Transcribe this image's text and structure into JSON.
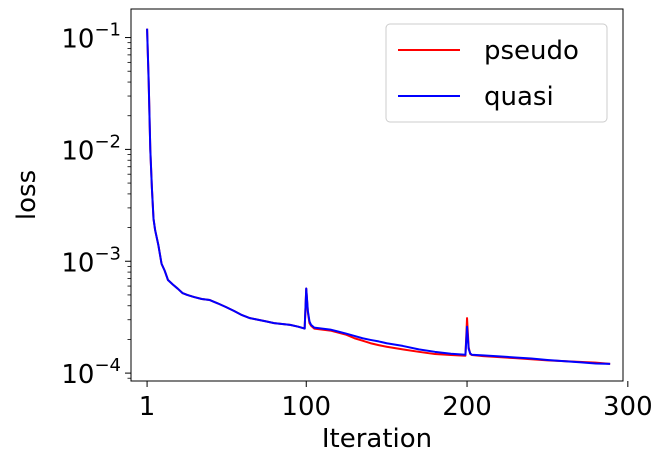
{
  "chart_data": {
    "type": "line",
    "title": "",
    "xlabel": "Iteration",
    "ylabel": "loss",
    "yscale": "log",
    "xlim": [
      -9,
      297
    ],
    "ylim": [
      8.5e-05,
      0.18
    ],
    "x_ticks": [
      1,
      100,
      200,
      300
    ],
    "y_ticks": [
      {
        "value": 0.0001,
        "base": "10",
        "exp": "−4"
      },
      {
        "value": 0.001,
        "base": "10",
        "exp": "−3"
      },
      {
        "value": 0.01,
        "base": "10",
        "exp": "−2"
      },
      {
        "value": 0.1,
        "base": "10",
        "exp": "−1"
      }
    ],
    "grid": false,
    "legend_position": "top-right",
    "series": [
      {
        "name": "pseudo",
        "color": "#ff0000",
        "points": [
          [
            1,
            0.12
          ],
          [
            2,
            0.04
          ],
          [
            3,
            0.01
          ],
          [
            4,
            0.0045
          ],
          [
            5,
            0.0024
          ],
          [
            6,
            0.0019
          ],
          [
            8,
            0.0014
          ],
          [
            10,
            0.00095
          ],
          [
            12,
            0.00082
          ],
          [
            14,
            0.00068
          ],
          [
            17,
            0.00062
          ],
          [
            20,
            0.00057
          ],
          [
            23,
            0.00052
          ],
          [
            26,
            0.0005
          ],
          [
            30,
            0.00048
          ],
          [
            35,
            0.00046
          ],
          [
            40,
            0.00045
          ],
          [
            45,
            0.00042
          ],
          [
            50,
            0.00039
          ],
          [
            55,
            0.00036
          ],
          [
            60,
            0.00033
          ],
          [
            65,
            0.00031
          ],
          [
            70,
            0.0003
          ],
          [
            75,
            0.00029
          ],
          [
            80,
            0.00028
          ],
          [
            85,
            0.000275
          ],
          [
            90,
            0.00027
          ],
          [
            95,
            0.00026
          ],
          [
            99,
            0.00025
          ],
          [
            100,
            0.00057
          ],
          [
            101,
            0.00035
          ],
          [
            102,
            0.00028
          ],
          [
            103,
            0.000265
          ],
          [
            105,
            0.00025
          ],
          [
            110,
            0.000245
          ],
          [
            115,
            0.00024
          ],
          [
            120,
            0.00023
          ],
          [
            125,
            0.00022
          ],
          [
            130,
            0.000205
          ],
          [
            135,
            0.000195
          ],
          [
            140,
            0.000185
          ],
          [
            145,
            0.000178
          ],
          [
            150,
            0.000172
          ],
          [
            160,
            0.000163
          ],
          [
            170,
            0.000155
          ],
          [
            180,
            0.000148
          ],
          [
            190,
            0.000145
          ],
          [
            199,
            0.000143
          ],
          [
            200,
            0.00031
          ],
          [
            201,
            0.00017
          ],
          [
            202,
            0.000148
          ],
          [
            203,
            0.000145
          ],
          [
            210,
            0.000142
          ],
          [
            220,
            0.000139
          ],
          [
            230,
            0.000136
          ],
          [
            240,
            0.000133
          ],
          [
            250,
            0.00013
          ],
          [
            260,
            0.000128
          ],
          [
            270,
            0.000126
          ],
          [
            280,
            0.000124
          ],
          [
            289,
            0.000121
          ]
        ]
      },
      {
        "name": "quasi",
        "color": "#0000ff",
        "points": [
          [
            1,
            0.12
          ],
          [
            2,
            0.04
          ],
          [
            3,
            0.01
          ],
          [
            4,
            0.0045
          ],
          [
            5,
            0.0024
          ],
          [
            6,
            0.0019
          ],
          [
            8,
            0.0014
          ],
          [
            10,
            0.00095
          ],
          [
            12,
            0.00082
          ],
          [
            14,
            0.00068
          ],
          [
            17,
            0.00062
          ],
          [
            20,
            0.00057
          ],
          [
            23,
            0.00052
          ],
          [
            26,
            0.0005
          ],
          [
            30,
            0.00048
          ],
          [
            35,
            0.00046
          ],
          [
            40,
            0.00045
          ],
          [
            45,
            0.00042
          ],
          [
            50,
            0.00039
          ],
          [
            55,
            0.00036
          ],
          [
            60,
            0.00033
          ],
          [
            65,
            0.00031
          ],
          [
            70,
            0.0003
          ],
          [
            75,
            0.00029
          ],
          [
            80,
            0.00028
          ],
          [
            85,
            0.000275
          ],
          [
            90,
            0.00027
          ],
          [
            95,
            0.00026
          ],
          [
            99,
            0.00025
          ],
          [
            100,
            0.00057
          ],
          [
            101,
            0.00036
          ],
          [
            102,
            0.00029
          ],
          [
            103,
            0.00027
          ],
          [
            105,
            0.000255
          ],
          [
            110,
            0.00025
          ],
          [
            115,
            0.000245
          ],
          [
            120,
            0.000235
          ],
          [
            125,
            0.000225
          ],
          [
            130,
            0.000215
          ],
          [
            135,
            0.000205
          ],
          [
            140,
            0.000198
          ],
          [
            145,
            0.000192
          ],
          [
            150,
            0.000185
          ],
          [
            160,
            0.000175
          ],
          [
            170,
            0.000163
          ],
          [
            180,
            0.000155
          ],
          [
            190,
            0.000149
          ],
          [
            199,
            0.000146
          ],
          [
            200,
            0.00026
          ],
          [
            201,
            0.000165
          ],
          [
            202,
            0.00015
          ],
          [
            203,
            0.000146
          ],
          [
            210,
            0.000144
          ],
          [
            220,
            0.000141
          ],
          [
            230,
            0.000138
          ],
          [
            240,
            0.000135
          ],
          [
            250,
            0.000131
          ],
          [
            260,
            0.000128
          ],
          [
            270,
            0.000125
          ],
          [
            280,
            0.000122
          ],
          [
            289,
            0.000121
          ]
        ]
      }
    ]
  }
}
